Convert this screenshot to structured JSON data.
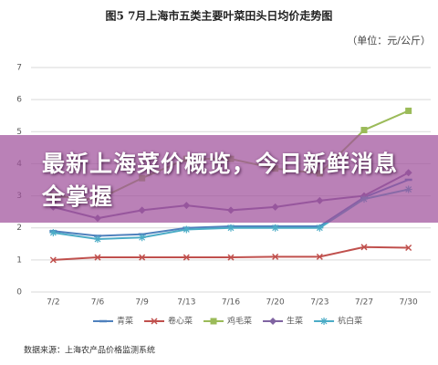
{
  "chart_data": {
    "type": "line",
    "title": "图5    7月上海市五类主要叶菜田头日均价走势图",
    "unit_label": "（单位：元/公斤）",
    "categories": [
      "7/2",
      "7/6",
      "7/9",
      "7/13",
      "7/16",
      "7/20",
      "7/23",
      "7/27",
      "7/30"
    ],
    "series": [
      {
        "name": "青菜",
        "color": "#4f81bd",
        "marker": "dash",
        "values": [
          1.9,
          1.75,
          1.8,
          2.0,
          2.05,
          2.05,
          2.05,
          2.95,
          3.5
        ]
      },
      {
        "name": "卷心菜",
        "color": "#c0504d",
        "marker": "cross",
        "values": [
          1.0,
          1.08,
          1.08,
          1.08,
          1.08,
          1.1,
          1.1,
          1.4,
          1.38
        ]
      },
      {
        "name": "鸡毛菜",
        "color": "#9bbb59",
        "marker": "square",
        "values": [
          3.0,
          2.88,
          3.55,
          4.15,
          4.15,
          3.85,
          3.7,
          5.05,
          5.65
        ]
      },
      {
        "name": "生菜",
        "color": "#8064a2",
        "marker": "diamond",
        "values": [
          2.65,
          2.3,
          2.55,
          2.7,
          2.55,
          2.65,
          2.85,
          3.0,
          3.72
        ]
      },
      {
        "name": "杭白菜",
        "color": "#4bacc6",
        "marker": "star",
        "values": [
          1.85,
          1.65,
          1.7,
          1.95,
          2.0,
          2.0,
          2.0,
          2.9,
          3.2
        ]
      }
    ],
    "ylim": [
      0,
      7
    ],
    "yticks": [
      0,
      1,
      2,
      3,
      4,
      5,
      6,
      7
    ],
    "grid": true,
    "source": "数据来源：上海农产品价格监测系统",
    "overlay_text": "最新上海菜价概览，今日新鲜消息全掌握"
  }
}
